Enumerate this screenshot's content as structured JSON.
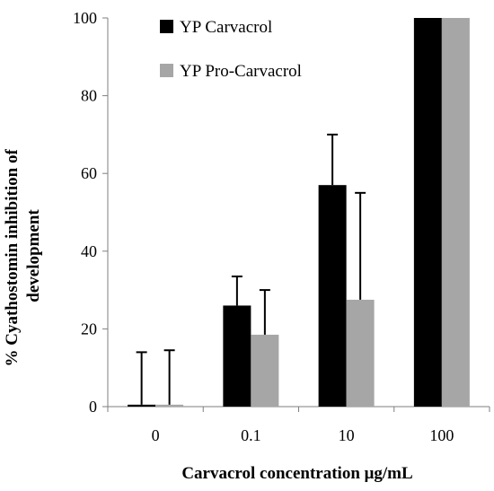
{
  "chart_data": {
    "type": "bar",
    "categories": [
      "0",
      "0.1",
      "10",
      "100"
    ],
    "series": [
      {
        "name": "YP Carvacrol",
        "color": "#000000",
        "values": [
          0.5,
          26,
          57,
          100
        ],
        "errors": [
          13.5,
          7.5,
          13,
          0
        ]
      },
      {
        "name": "YP Pro-Carvacrol",
        "color": "#a6a6a6",
        "values": [
          0.5,
          18.5,
          27.5,
          100
        ],
        "errors": [
          14,
          11.5,
          27.5,
          0
        ]
      }
    ],
    "yticks": [
      0,
      20,
      40,
      60,
      80,
      100
    ],
    "ylim": [
      0,
      100
    ],
    "xlabel": "Carvacrol concentration μg/mL",
    "ylabel_line1": "% Cyathostomin inhibition of",
    "ylabel_line2": "development",
    "legend_position": "top-left"
  }
}
